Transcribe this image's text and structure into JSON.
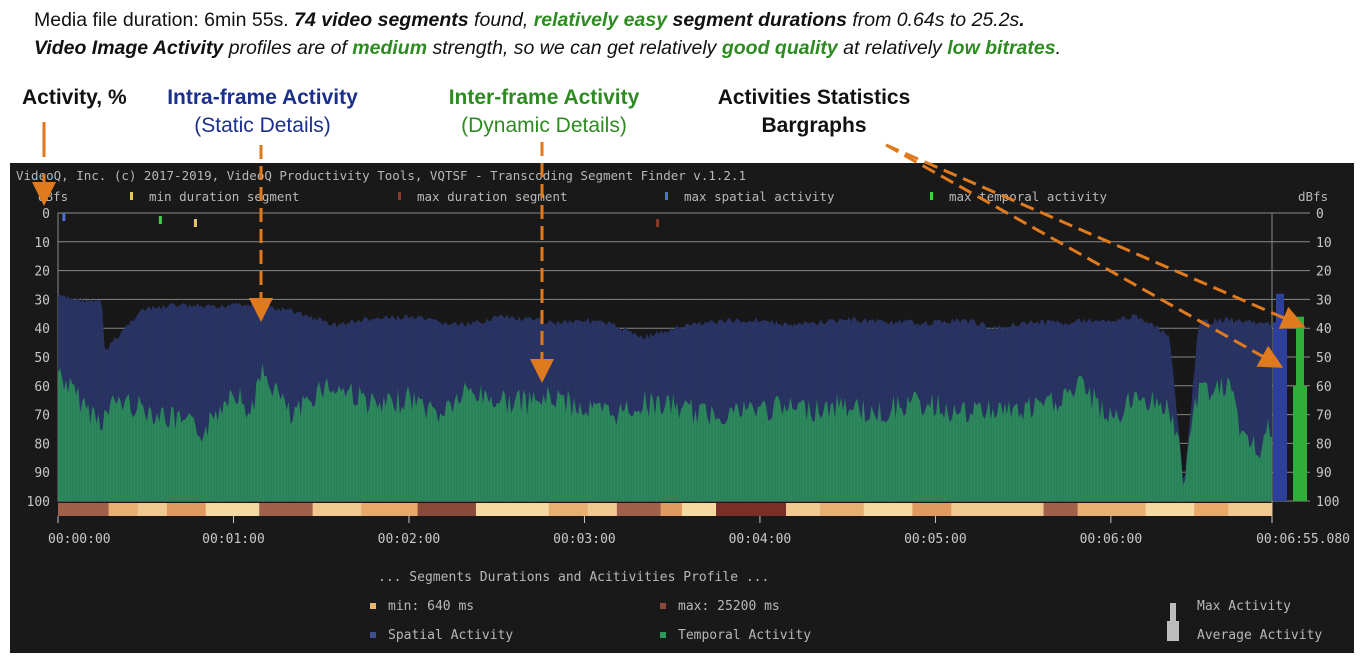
{
  "summary": {
    "line1": {
      "p1": "Media file duration: 6min 55s. ",
      "p2": "74 video segments",
      "p3": " found, ",
      "p4": "relatively easy",
      "p5": " segment durations",
      "p6": " from 0.64s to 25.2s",
      "p7": "."
    },
    "line2": {
      "p1": "Video Image Activity",
      "p2": " profiles are of ",
      "p3": "medium",
      "p4": " strength, so we can get relatively ",
      "p5": "good quality",
      "p6": " at relatively ",
      "p7": "low bitrates",
      "p8": "."
    }
  },
  "annotations": {
    "activity": "Activity, %",
    "intra_title": "Intra-frame Activity",
    "intra_sub": "(Static Details)",
    "inter_title": "Inter-frame Activity",
    "inter_sub": "(Dynamic Details)",
    "stats_title": "Activities Statistics",
    "stats_sub": "Bargraphs"
  },
  "panel": {
    "header": "VideoQ, Inc. (c) 2017-2019, VideoQ Productivity Tools, VQTSF - Transcoding Segment Finder v.1.2.1",
    "unit_left": "dBfs",
    "unit_right": "dBfs",
    "legend_top": [
      {
        "label": "min duration segment",
        "color": "#e8c36a"
      },
      {
        "label": "max duration segment",
        "color": "#8a3a2a"
      },
      {
        "label": "max spatial activity",
        "color": "#4d6fd6"
      },
      {
        "label": "max temporal activity",
        "color": "#3fcf4f"
      }
    ],
    "bottom_title": "... Segments Durations and Acitivities Profile ...",
    "legend_bottom": [
      {
        "label": "min: 640 ms",
        "color": "#e8b86a"
      },
      {
        "label": "max: 25200 ms",
        "color": "#8a4a3a"
      },
      {
        "label": "Spatial Activity",
        "color": "#3e4f93"
      },
      {
        "label": "Temporal Activity",
        "color": "#2d9a5b"
      }
    ],
    "legend_stats": [
      "Max Activity",
      "Average Activity"
    ]
  },
  "chart_data": {
    "type": "bar",
    "y_axis": {
      "ticks": [
        "0",
        "10",
        "20",
        "30",
        "40",
        "50",
        "60",
        "70",
        "80",
        "90",
        "100"
      ],
      "ylim": [
        0,
        100
      ],
      "inverted": true
    },
    "x_axis": {
      "ticks": [
        "00:00:00",
        "00:01:00",
        "00:02:00",
        "00:03:00",
        "00:04:00",
        "00:05:00",
        "00:06:00",
        "00:06:55.080"
      ],
      "xlim": [
        0,
        415.08
      ]
    },
    "series": [
      {
        "name": "Spatial Activity",
        "color": "#2a3566",
        "x": [
          0,
          15,
          16,
          28,
          40,
          55,
          60,
          80,
          95,
          105,
          120,
          130,
          140,
          150,
          160,
          170,
          180,
          190,
          200,
          220,
          240,
          250,
          270,
          290,
          300,
          310,
          320,
          330,
          340,
          360,
          370,
          380,
          385,
          390,
          400,
          410,
          414
        ],
        "values": [
          29,
          31,
          48,
          34,
          32,
          33,
          31,
          34,
          39,
          37,
          36,
          38,
          39,
          36,
          37,
          38,
          37,
          39,
          43,
          38,
          37,
          39,
          37,
          38,
          38,
          37,
          40,
          38,
          38,
          37,
          36,
          43,
          95,
          38,
          37,
          38,
          39
        ]
      },
      {
        "name": "Temporal Activity",
        "color": "#2d8a5e",
        "x": [
          0,
          5,
          10,
          15,
          20,
          30,
          40,
          50,
          60,
          65,
          70,
          75,
          80,
          90,
          100,
          110,
          120,
          130,
          140,
          150,
          160,
          170,
          180,
          190,
          200,
          210,
          220,
          230,
          240,
          250,
          260,
          270,
          280,
          290,
          300,
          310,
          320,
          330,
          340,
          350,
          360,
          370,
          380,
          385,
          390,
          400,
          405,
          410,
          414
        ],
        "values": [
          55,
          62,
          68,
          72,
          65,
          68,
          72,
          76,
          60,
          70,
          56,
          62,
          72,
          60,
          62,
          68,
          64,
          70,
          62,
          65,
          66,
          64,
          68,
          70,
          66,
          67,
          70,
          69,
          68,
          68,
          68,
          67,
          70,
          66,
          67,
          70,
          68,
          69,
          66,
          60,
          72,
          63,
          68,
          85,
          62,
          60,
          77,
          83,
          75
        ]
      }
    ],
    "segment_events": [
      {
        "label": "max spatial activity",
        "time": 2
      },
      {
        "label": "max temporal activity",
        "time": 35
      },
      {
        "label": "min duration segment",
        "time": 47
      },
      {
        "label": "max duration segment",
        "time": 205
      }
    ],
    "statistics_bars": {
      "spatial": {
        "max": 28,
        "average": 38
      },
      "temporal": {
        "max": 36,
        "average": 60
      }
    }
  }
}
